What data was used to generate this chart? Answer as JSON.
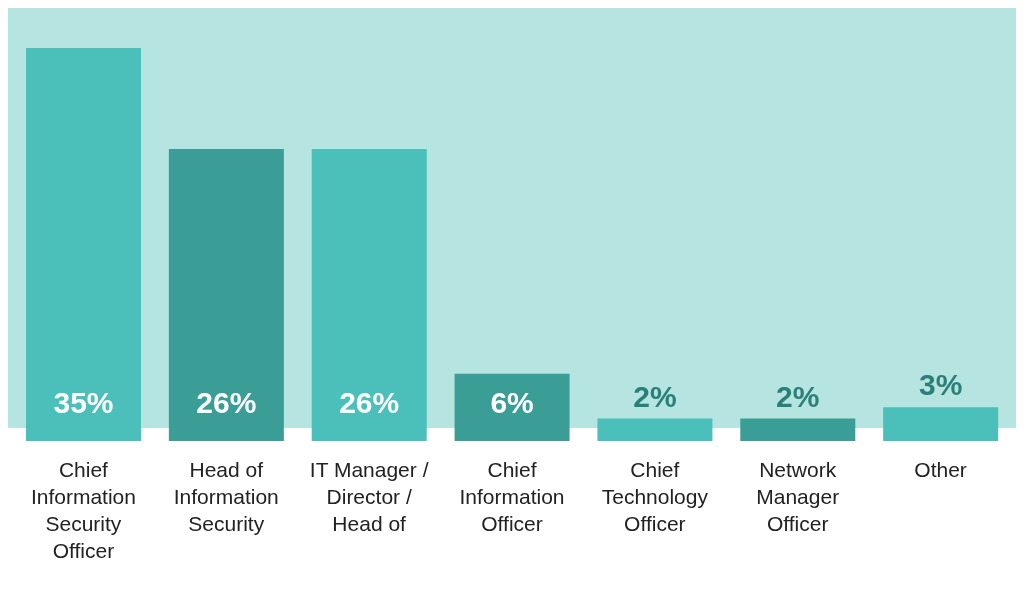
{
  "chart_data": {
    "type": "bar",
    "categories": [
      "Chief Information Security Officer",
      "Head of Information Security",
      "IT Manager / Director / Head of",
      "Chief Information Officer",
      "Chief Technology Officer",
      "Network Manager Officer",
      "Other"
    ],
    "values": [
      35,
      26,
      26,
      6,
      2,
      2,
      3
    ],
    "colors": [
      "#4bbfb9",
      "#3a9d96",
      "#4bbfb9",
      "#3a9d96",
      "#4bbfb9",
      "#3a9d96",
      "#4bbfb9"
    ],
    "value_labels": [
      "35%",
      "26%",
      "26%",
      "6%",
      "2%",
      "2%",
      "3%"
    ]
  }
}
